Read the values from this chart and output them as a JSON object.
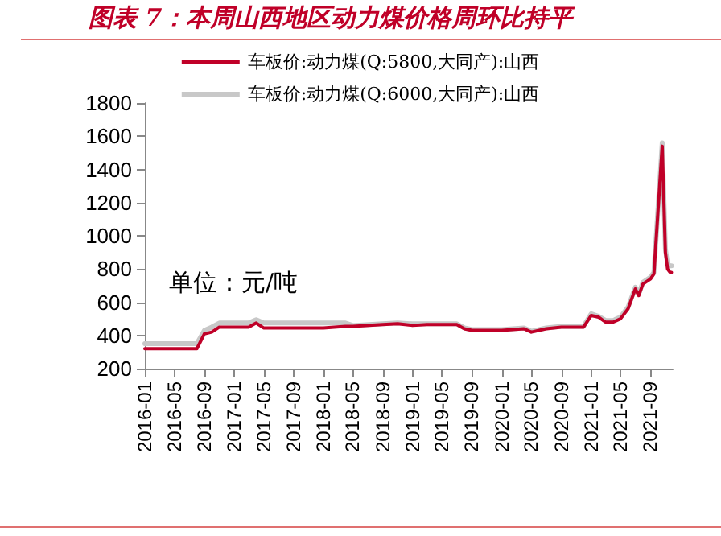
{
  "chart_data": {
    "type": "line",
    "title": "图表 7：本周山西地区动力煤价格周环比持平",
    "annotations": [
      "单位：元/吨"
    ],
    "x": [
      "2016-01",
      "2016-08",
      "2016-09",
      "2016-10",
      "2016-11",
      "2017-03",
      "2017-04",
      "2017-05",
      "2018-01",
      "2018-04",
      "2018-05",
      "2018-09",
      "2018-11",
      "2019-01",
      "2019-03",
      "2019-07",
      "2019-08",
      "2019-09",
      "2020-01",
      "2020-04",
      "2020-05",
      "2020-07",
      "2020-09",
      "2020-12",
      "2021-01",
      "2021-02",
      "2021-03",
      "2021-04",
      "2021-05",
      "2021-06",
      "2021-07",
      "2021-07-15",
      "2021-08",
      "2021-09",
      "2021-09-15",
      "2021-10-19",
      "2021-11-01",
      "2021-11-10",
      "2021-11-20",
      "2021-11-26"
    ],
    "series": [
      {
        "name": "车板价:动力煤(Q:5800,大同产):山西",
        "color": "#c00028",
        "values": [
          320,
          320,
          410,
          420,
          450,
          450,
          475,
          445,
          445,
          455,
          455,
          465,
          470,
          460,
          465,
          465,
          440,
          430,
          430,
          440,
          420,
          440,
          450,
          450,
          520,
          510,
          480,
          480,
          500,
          560,
          680,
          640,
          710,
          740,
          770,
          1540,
          900,
          800,
          780,
          780
        ]
      },
      {
        "name": "车板价:动力煤(Q:6000,大同产):山西",
        "color": "#c8c8c8",
        "values": [
          350,
          350,
          430,
          450,
          475,
          475,
          495,
          475,
          475,
          475,
          460,
          470,
          475,
          470,
          470,
          470,
          445,
          435,
          435,
          445,
          425,
          445,
          455,
          455,
          530,
          515,
          490,
          490,
          510,
          570,
          690,
          650,
          720,
          750,
          780,
          1560,
          920,
          830,
          820,
          820
        ]
      }
    ],
    "xlim": [
      "2016-01",
      "2021-12"
    ],
    "xticks": [
      "2016-01",
      "2016-05",
      "2016-09",
      "2017-01",
      "2017-05",
      "2017-09",
      "2018-01",
      "2018-05",
      "2018-09",
      "2019-01",
      "2019-05",
      "2019-09",
      "2020-01",
      "2020-05",
      "2020-09",
      "2021-01",
      "2021-05",
      "2021-09"
    ],
    "ylim": [
      200,
      1800
    ],
    "yticks": [
      200,
      400,
      600,
      800,
      1000,
      1200,
      1400,
      1600,
      1800
    ],
    "grid": false,
    "legend": "top",
    "marker": "none",
    "line_style": "solid"
  }
}
